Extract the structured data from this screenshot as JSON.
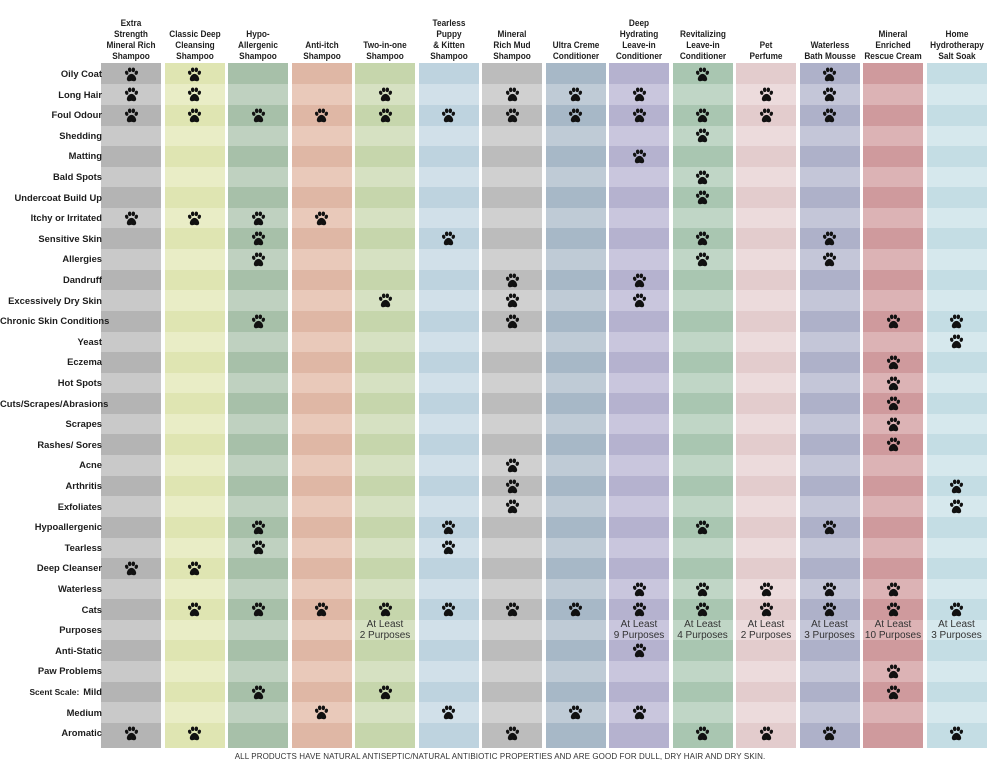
{
  "columns": [
    {
      "key": "c1",
      "name": "Extra Strength Mineral Rich Shampoo",
      "lines": [
        "Extra",
        "Strength",
        "Mineral Rich",
        "Shampoo"
      ],
      "color": "#b4b4b4",
      "stripe": "#c9c9c9"
    },
    {
      "key": "c2",
      "name": "Classic Deep Cleansing Shampoo",
      "lines": [
        "Classic Deep",
        "Cleansing",
        "Shampoo"
      ],
      "color": "#dfe5b2",
      "stripe": "#e9edc6"
    },
    {
      "key": "c3",
      "name": "Hypo-Allergenic Shampoo",
      "lines": [
        "Hypo-",
        "Allergenic",
        "Shampoo"
      ],
      "color": "#a7c0a9",
      "stripe": "#bfd1c0"
    },
    {
      "key": "c4",
      "name": "Anti-itch Shampoo",
      "lines": [
        "Anti-itch",
        "Shampoo"
      ],
      "color": "#dfb7a5",
      "stripe": "#e9c9ba"
    },
    {
      "key": "c5",
      "name": "Two-in-one Shampoo",
      "lines": [
        "Two-in-one",
        "Shampoo"
      ],
      "color": "#c6d6ac",
      "stripe": "#d6e1c2"
    },
    {
      "key": "c6",
      "name": "Tearless Puppy & Kitten Shampoo",
      "lines": [
        "Tearless",
        "Puppy",
        "& Kitten",
        "Shampoo"
      ],
      "color": "#bed3df",
      "stripe": "#d1e0e9"
    },
    {
      "key": "c7",
      "name": "Mineral Rich Mud Shampoo",
      "lines": [
        "Mineral",
        "Rich Mud",
        "Shampoo"
      ],
      "color": "#bcbcbc",
      "stripe": "#d0d0d0"
    },
    {
      "key": "c8",
      "name": "Ultra Creme Conditioner",
      "lines": [
        "Ultra Creme",
        "Conditioner"
      ],
      "color": "#a7b8c7",
      "stripe": "#bfcbd6"
    },
    {
      "key": "c9",
      "name": "Deep Hydrating Leave-in Conditioner",
      "lines": [
        "Deep",
        "Hydrating",
        "Leave-in",
        "Conditioner"
      ],
      "color": "#b5b2cf",
      "stripe": "#c9c6dd"
    },
    {
      "key": "c10",
      "name": "Revitalizing Leave-in Conditioner",
      "lines": [
        "Revitalizing",
        "Leave-in",
        "Conditioner"
      ],
      "color": "#a9c6b1",
      "stripe": "#c0d6c6"
    },
    {
      "key": "c11",
      "name": "Pet Perfume",
      "lines": [
        "Pet",
        "Perfume"
      ],
      "color": "#e3cccd",
      "stripe": "#ecdbdc"
    },
    {
      "key": "c12",
      "name": "Waterless Bath Mousse",
      "lines": [
        "Waterless",
        "Bath Mousse"
      ],
      "color": "#aeb1c9",
      "stripe": "#c4c6d8"
    },
    {
      "key": "c13",
      "name": "Mineral Enriched Rescue Cream",
      "lines": [
        "Mineral",
        "Enriched",
        "Rescue Cream"
      ],
      "color": "#cf9a9d",
      "stripe": "#dcb3b5"
    },
    {
      "key": "c14",
      "name": "Home Hydrotherapy Salt Soak",
      "lines": [
        "Home",
        "Hydrotherapy",
        "Salt Soak"
      ],
      "color": "#c4dde4",
      "stripe": "#d6e8ed"
    }
  ],
  "rows": [
    {
      "label": "Oily Coat",
      "marks": [
        1,
        2,
        10,
        12
      ]
    },
    {
      "label": "Long Hair",
      "marks": [
        1,
        2,
        5,
        7,
        8,
        9,
        11,
        12
      ]
    },
    {
      "label": "Foul Odour",
      "marks": [
        1,
        2,
        3,
        4,
        5,
        6,
        7,
        8,
        9,
        10,
        11,
        12
      ]
    },
    {
      "label": "Shedding",
      "marks": [
        10
      ]
    },
    {
      "label": "Matting",
      "marks": [
        9
      ]
    },
    {
      "label": "Bald Spots",
      "marks": [
        10
      ]
    },
    {
      "label": "Undercoat Build Up",
      "marks": [
        10
      ]
    },
    {
      "label": "Itchy or Irritated",
      "marks": [
        1,
        2,
        3,
        4
      ]
    },
    {
      "label": "Sensitive Skin",
      "marks": [
        3,
        6,
        10,
        12
      ]
    },
    {
      "label": "Allergies",
      "marks": [
        3,
        10,
        12
      ]
    },
    {
      "label": "Dandruff",
      "marks": [
        7,
        9
      ]
    },
    {
      "label": "Excessively Dry Skin",
      "marks": [
        5,
        7,
        9
      ]
    },
    {
      "label": "Chronic Skin Conditions",
      "marks": [
        3,
        7,
        13,
        14
      ]
    },
    {
      "label": "Yeast",
      "marks": [
        14
      ]
    },
    {
      "label": "Eczema",
      "marks": [
        13
      ]
    },
    {
      "label": "Hot Spots",
      "marks": [
        13
      ]
    },
    {
      "label": "Cuts/Scrapes/Abrasions",
      "marks": [
        13
      ]
    },
    {
      "label": "Scrapes",
      "marks": [
        13
      ]
    },
    {
      "label": "Rashes/ Sores",
      "marks": [
        13
      ]
    },
    {
      "label": "Acne",
      "marks": [
        7
      ]
    },
    {
      "label": "Arthritis",
      "marks": [
        7,
        14
      ]
    },
    {
      "label": "Exfoliates",
      "marks": [
        7,
        14
      ]
    },
    {
      "label": "Hypoallergenic",
      "marks": [
        3,
        6,
        10,
        12
      ]
    },
    {
      "label": "Tearless",
      "marks": [
        3,
        6
      ]
    },
    {
      "label": "Deep Cleanser",
      "marks": [
        1,
        2
      ]
    },
    {
      "label": "Waterless",
      "marks": [
        9,
        10,
        11,
        12,
        13
      ]
    },
    {
      "label": "Cats",
      "marks": [
        2,
        3,
        4,
        5,
        6,
        7,
        8,
        9,
        10,
        11,
        12,
        13,
        14
      ]
    },
    {
      "label": "Purposes",
      "marks": [],
      "texts": {
        "5": [
          "At Least",
          "2 Purposes"
        ],
        "9": [
          "At Least",
          "9 Purposes"
        ],
        "10": [
          "At Least",
          "4 Purposes"
        ],
        "11": [
          "At Least",
          "2 Purposes"
        ],
        "12": [
          "At Least",
          "3 Purposes"
        ],
        "13": [
          "At Least",
          "10 Purposes"
        ],
        "14": [
          "At Least",
          "3 Purposes"
        ]
      }
    },
    {
      "label": "Anti-Static",
      "marks": [
        9
      ]
    },
    {
      "label": "Paw Problems",
      "marks": [
        13
      ]
    },
    {
      "label": "Mild",
      "prefix": "Scent Scale:",
      "marks": [
        3,
        5,
        13
      ]
    },
    {
      "label": "Medium",
      "marks": [
        4,
        6,
        8,
        9
      ]
    },
    {
      "label": "Aromatic",
      "marks": [
        1,
        2,
        7,
        10,
        11,
        12,
        14
      ]
    }
  ],
  "footnote": "ALL PRODUCTS HAVE NATURAL ANTISEPTIC/NATURAL ANTIBIOTIC PROPERTIES AND ARE GOOD FOR DULL, DRY HAIR AND DRY SKIN.",
  "icons": {
    "mark": "paw-print-icon"
  },
  "colors": {
    "paw": "#111111",
    "text": "#1d1d1d"
  }
}
